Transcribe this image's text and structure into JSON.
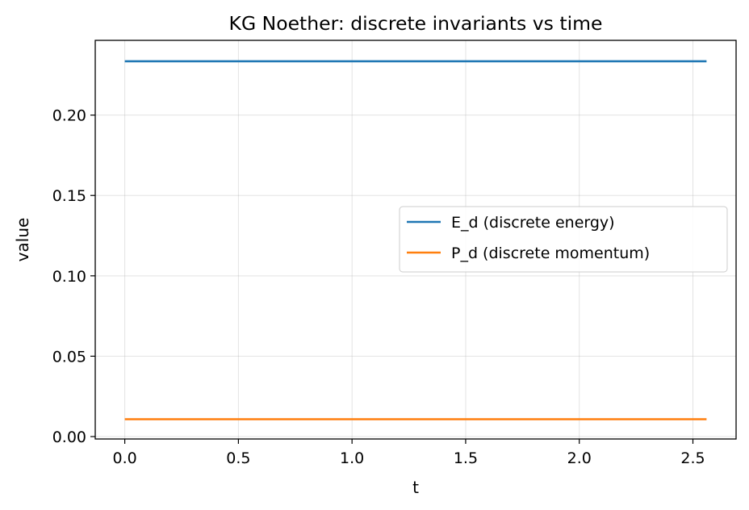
{
  "chart_data": {
    "type": "line",
    "title": "KG Noether: discrete invariants vs time",
    "xlabel": "t",
    "ylabel": "value",
    "xlim": [
      -0.13,
      2.69
    ],
    "ylim": [
      -0.0015,
      0.2465
    ],
    "xticks": [
      0.0,
      0.5,
      1.0,
      1.5,
      2.0,
      2.5
    ],
    "xtick_labels": [
      "0.0",
      "0.5",
      "1.0",
      "1.5",
      "2.0",
      "2.5"
    ],
    "yticks": [
      0.0,
      0.05,
      0.1,
      0.15,
      0.2
    ],
    "ytick_labels": [
      "0.00",
      "0.05",
      "0.10",
      "0.15",
      "0.20"
    ],
    "grid": true,
    "legend_position": "center-right",
    "series": [
      {
        "name": "E_d (discrete energy)",
        "color": "#1f77b4",
        "x": [
          0.0,
          2.56
        ],
        "y": [
          0.2335,
          0.2335
        ]
      },
      {
        "name": "P_d (discrete momentum)",
        "color": "#ff7f0e",
        "x": [
          0.0,
          2.56
        ],
        "y": [
          0.0108,
          0.0108
        ]
      }
    ]
  }
}
